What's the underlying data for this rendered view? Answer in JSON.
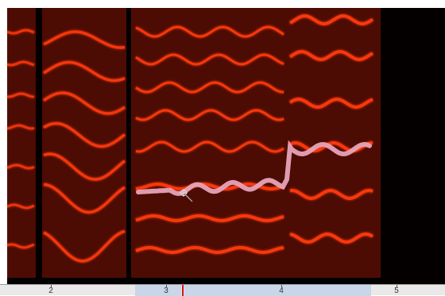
{
  "app": {
    "view": "spectrogram",
    "colors": {
      "background": "#000000",
      "harmonic": "#ff3a10",
      "noise": "#8a1506",
      "selected_contour": "#e7a3b8",
      "selection_band": "#c9d6ea",
      "playhead": "#e01010"
    }
  },
  "timeline": {
    "labels": [
      "2",
      "3",
      "4",
      "5"
    ],
    "playhead_time": 3.13
  },
  "spectrogram": {
    "selected_contour": "pitch-contour",
    "cursor_icon": "crosshair-cursor-icon"
  }
}
